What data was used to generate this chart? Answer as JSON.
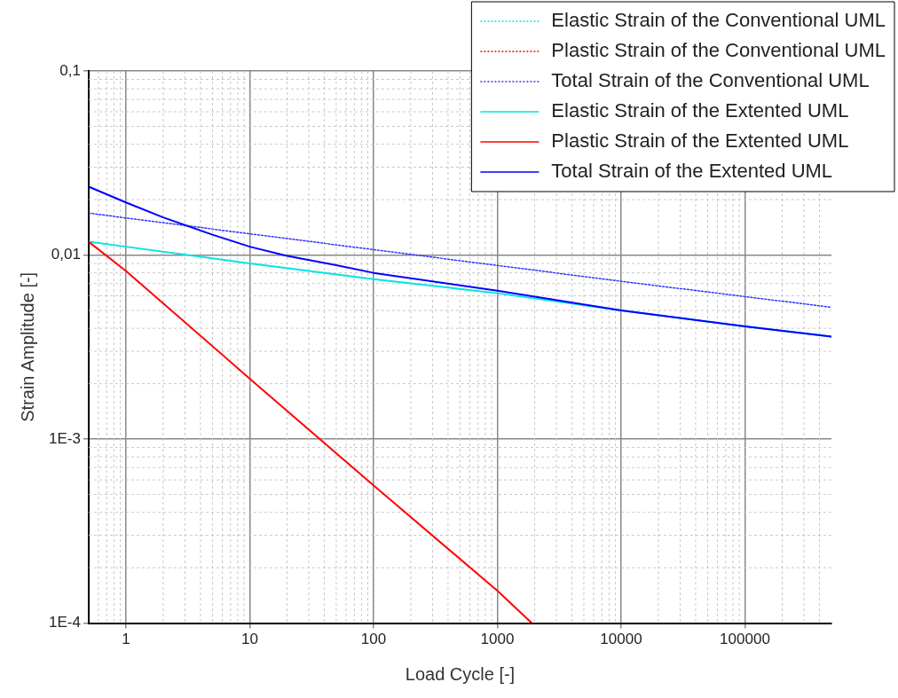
{
  "chart_data": {
    "type": "line",
    "xlabel": "Load Cycle [-]",
    "ylabel": "Strain Amplitude [-]",
    "log": "xy",
    "grid": true,
    "legend": "top right",
    "marker": "none",
    "xlim": [
      0.5,
      500000
    ],
    "ylim": [
      0.0001,
      0.1
    ],
    "xticks": [
      1,
      10,
      100,
      1000,
      10000,
      100000
    ],
    "yticks": [
      {
        "value": 0.0001,
        "label": "1E-4"
      },
      {
        "value": 0.001,
        "label": "1E-3"
      },
      {
        "value": 0.01,
        "label": "0,01"
      },
      {
        "value": 0.1,
        "label": "0,1"
      }
    ],
    "series": [
      {
        "name": "Elastic Strain of the Conventional UML",
        "color": "#00e5e5",
        "line_style": "dotted"
      },
      {
        "name": "Plastic Strain of the Conventional UML",
        "color": "#ff0000",
        "line_style": "dotted"
      },
      {
        "name": "Total Strain of the Conventional UML",
        "color": "#3333ff",
        "line_style": "dotted",
        "x": [
          0.5,
          1,
          100,
          10000,
          500000
        ],
        "values": [
          0.0169,
          0.0159,
          0.0107,
          0.0072,
          0.0052
        ]
      },
      {
        "name": "Elastic Strain of the Extented UML",
        "color": "#00e5e5",
        "line_style": "solid",
        "x": [
          0.5,
          1,
          10,
          100,
          1000,
          10000,
          100000,
          500000
        ],
        "values": [
          0.0118,
          0.0111,
          0.009,
          0.0074,
          0.0062,
          0.005,
          0.0041,
          0.0036
        ]
      },
      {
        "name": "Plastic Strain of the Extented UML",
        "color": "#ff0000",
        "line_style": "solid",
        "x": [
          0.5,
          1,
          10,
          100,
          1000,
          1900
        ],
        "values": [
          0.0118,
          0.0082,
          0.00213,
          0.00056,
          0.00015,
          0.0001
        ]
      },
      {
        "name": "Total Strain of the Extented UML",
        "color": "#0000ff",
        "line_style": "solid",
        "x": [
          0.5,
          1,
          2,
          5,
          10,
          20,
          50,
          100,
          1000,
          10000,
          100000,
          500000
        ],
        "values": [
          0.0235,
          0.0193,
          0.016,
          0.0129,
          0.0111,
          0.0099,
          0.0088,
          0.008,
          0.0064,
          0.005,
          0.0041,
          0.0036
        ]
      }
    ]
  }
}
